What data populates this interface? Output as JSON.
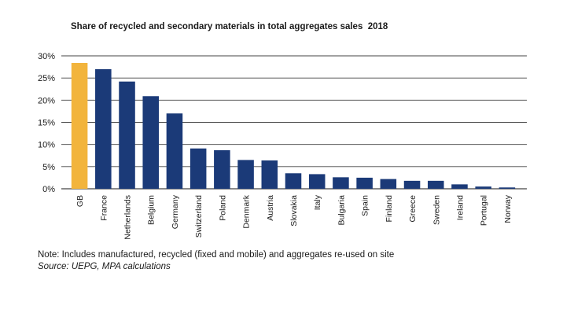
{
  "title": "Share of recycled and secondary materials in total aggregates sales  2018",
  "note": "Note: Includes manufactured, recycled (fixed and mobile) and aggregates re-used on site",
  "source": "Source: UEPG, MPA calculations",
  "colors": {
    "highlight": "#f2b43c",
    "bar": "#1b3a78",
    "grid": "#444444"
  },
  "chart_data": {
    "type": "bar",
    "title": "Share of recycled and secondary materials in total aggregates sales  2018",
    "xlabel": "",
    "ylabel": "",
    "ylim": [
      0,
      30
    ],
    "y_ticks": [
      "0%",
      "5%",
      "10%",
      "15%",
      "20%",
      "25%",
      "30%"
    ],
    "grid": true,
    "categories": [
      "GB",
      "France",
      "Netherlands",
      "Belgium",
      "Germany",
      "Switzerland",
      "Poland",
      "Denmark",
      "Austria",
      "Slovakia",
      "Italy",
      "Bulgaria",
      "Spain",
      "Finland",
      "Greece",
      "Sweden",
      "Ireland",
      "Portugal",
      "Norway"
    ],
    "values": [
      28.4,
      27.0,
      24.2,
      20.9,
      17.0,
      9.1,
      8.7,
      6.5,
      6.4,
      3.5,
      3.3,
      2.6,
      2.5,
      2.2,
      1.8,
      1.8,
      1.0,
      0.5,
      0.3
    ],
    "highlight_category": "GB"
  }
}
